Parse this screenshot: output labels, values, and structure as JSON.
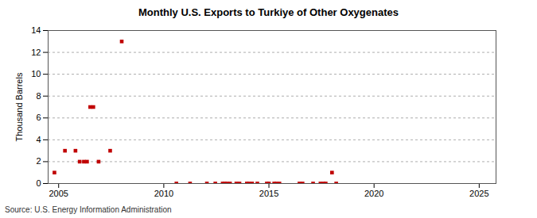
{
  "chart_data": {
    "type": "scatter",
    "title": "Monthly U.S. Exports to Turkiye of Other Oxygenates",
    "y_label": "Thousand Barrels",
    "source": "Source: U.S. Energy Information Administration",
    "color": "#c00000",
    "marker": "square",
    "grid": true,
    "x": [
      2004.8,
      2005.3,
      2005.8,
      2006.0,
      2006.2,
      2006.35,
      2006.5,
      2006.65,
      2006.9,
      2007.45,
      2008.0,
      2010.6,
      2011.25,
      2012.05,
      2012.45,
      2012.8,
      2012.9,
      2013.0,
      2013.15,
      2013.45,
      2013.6,
      2013.95,
      2014.05,
      2014.2,
      2014.45,
      2014.9,
      2015.0,
      2015.25,
      2015.35,
      2015.5,
      2016.45,
      2016.6,
      2017.1,
      2017.45,
      2017.6,
      2017.7,
      2018.0,
      2018.2
    ],
    "values": [
      1,
      3,
      3,
      2,
      2,
      2,
      7,
      7,
      2,
      3,
      13,
      0,
      0,
      0,
      0,
      0,
      0,
      0,
      0,
      0,
      0,
      0,
      0,
      0,
      0,
      0,
      0,
      0,
      0,
      0,
      0,
      0,
      0,
      0,
      0,
      0,
      1,
      0
    ],
    "xlim": [
      2004.5,
      2025.8
    ],
    "xticks": [
      2005,
      2010,
      2015,
      2020,
      2025
    ],
    "ylim": [
      0,
      14
    ],
    "yticks": [
      0,
      2,
      4,
      6,
      8,
      10,
      12,
      14
    ]
  }
}
